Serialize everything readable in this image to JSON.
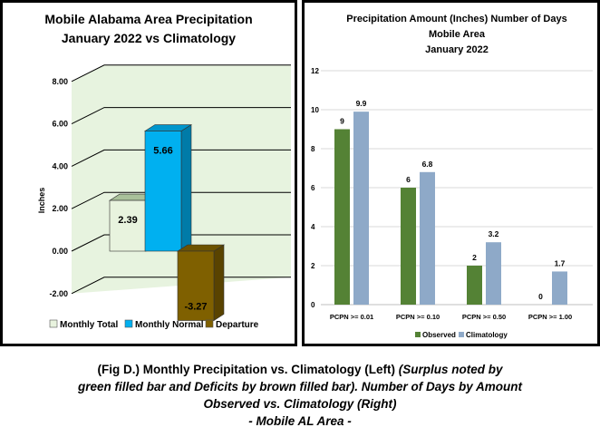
{
  "colors": {
    "monthly_total": "#e8f3de",
    "monthly_normal": "#00b0f0",
    "departure": "#7f6000",
    "observed": "#548235",
    "climatology": "#8ea9c8",
    "plot_bg_left": "#d7ebc9"
  },
  "chart_data": [
    {
      "type": "bar",
      "title": "Mobile Alabama Area Precipitation",
      "subtitle": "January 2022 vs Climatology",
      "ylabel": "Inches",
      "ylim": [
        -2,
        8
      ],
      "yticks": [
        "-2.00",
        "0.00",
        "2.00",
        "4.00",
        "6.00",
        "8.00"
      ],
      "grid": true,
      "legend": "bottom",
      "series": [
        {
          "name": "Monthly Total",
          "value": 2.39,
          "label": "2.39"
        },
        {
          "name": "Monthly Normal",
          "value": 5.66,
          "label": "5.66"
        },
        {
          "name": "Departure",
          "value": -3.27,
          "label": "-3.27"
        }
      ]
    },
    {
      "type": "bar",
      "title": "Precipitation Amount (Inches) Number of Days",
      "subtitle": "Mobile Area",
      "subtitle2": "January 2022",
      "ylim": [
        0,
        12
      ],
      "yticks": [
        "0",
        "2",
        "4",
        "6",
        "8",
        "10",
        "12"
      ],
      "grid": true,
      "legend": "bottom",
      "categories": [
        "PCPN >= 0.01",
        "PCPN >= 0.10",
        "PCPN >= 0.50",
        "PCPN >= 1.00"
      ],
      "series": [
        {
          "name": "Observed",
          "values": [
            9,
            6,
            2,
            0
          ],
          "labels": [
            "9",
            "6",
            "2",
            "0"
          ]
        },
        {
          "name": "Climatology",
          "values": [
            9.9,
            6.8,
            3.2,
            1.7
          ],
          "labels": [
            "9.9",
            "6.8",
            "3.2",
            "1.7"
          ]
        }
      ]
    }
  ],
  "caption": {
    "line1_normal": "(Fig D.) Monthly Precipitation vs. Climatology (Left) ",
    "line1_italic": "(Surplus noted by",
    "line2": "green filled bar and Deficits by brown filled bar). Number of Days by Amount",
    "line3": "Observed vs. Climatology (Right)",
    "line4": "- Mobile AL Area -"
  }
}
